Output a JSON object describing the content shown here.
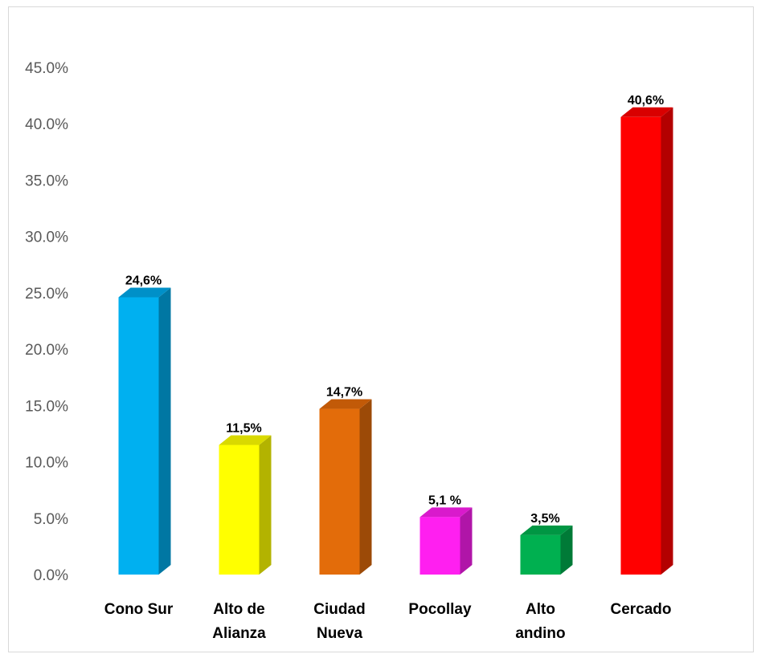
{
  "chart_data": {
    "type": "bar",
    "title": "",
    "xlabel": "",
    "ylabel": "",
    "ylim": [
      0,
      45
    ],
    "yticks": [
      "0.0%",
      "5.0%",
      "10.0%",
      "15.0%",
      "20.0%",
      "25.0%",
      "30.0%",
      "35.0%",
      "40.0%",
      "45.0%"
    ],
    "grid": false,
    "legend": "none",
    "categories": [
      [
        "Cono Sur"
      ],
      [
        "Alto de",
        "Alianza"
      ],
      [
        "Ciudad",
        "Nueva"
      ],
      [
        "Pocollay"
      ],
      [
        "Alto",
        "andino"
      ],
      [
        "Cercado"
      ]
    ],
    "values": [
      24.6,
      11.5,
      14.7,
      5.1,
      3.5,
      40.6
    ],
    "data_labels": [
      "24,6%",
      "11,5%",
      "14,7%",
      "5,1 %",
      "3,5%",
      "40,6%"
    ],
    "colors": [
      "#00b0f0",
      "#ffff00",
      "#e36c0a",
      "#ff1ff0",
      "#00b050",
      "#ff0000"
    ],
    "side_colors": [
      "#0077a3",
      "#b3b300",
      "#9c4a07",
      "#b015a8",
      "#007a37",
      "#b30000"
    ],
    "top_colors": [
      "#0090c8",
      "#d9d900",
      "#c25a08",
      "#d91acc",
      "#009643",
      "#d90000"
    ]
  }
}
